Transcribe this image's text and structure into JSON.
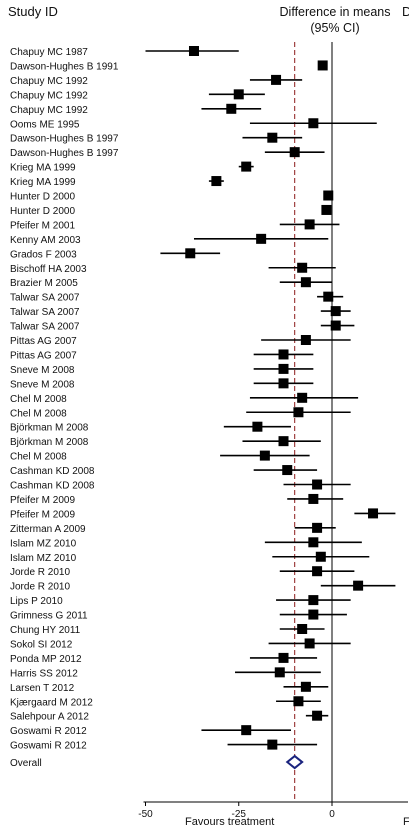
{
  "header": {
    "study_label": "Study ID",
    "effect_label_line1": "Difference in means",
    "effect_label_line2": "(95% CI)",
    "truncated_label": "D"
  },
  "footer": {
    "left_label": "Favours treatment",
    "right_label_truncated": "F"
  },
  "colors": {
    "marker": "#000000",
    "overall_diamond": "#1a237e",
    "reference_line": "#8b1a1a"
  },
  "chart_data": {
    "type": "forest",
    "xlabel": "",
    "ylabel": "",
    "xlim": [
      -55,
      4
    ],
    "xticks": [
      -50,
      -25,
      0
    ],
    "null_line": 0,
    "pooled_estimate_line": -10,
    "studies": [
      {
        "label": "Chapuy MC 1987",
        "mean": -37,
        "lo": -50,
        "hi": -25
      },
      {
        "label": "Dawson-Hughes B 1991",
        "mean": -2.5,
        "lo": -3.5,
        "hi": -1.5
      },
      {
        "label": "Chapuy MC 1992",
        "mean": -15,
        "lo": -22,
        "hi": -8
      },
      {
        "label": "Chapuy MC 1992",
        "mean": -25,
        "lo": -33,
        "hi": -18
      },
      {
        "label": "Chapuy MC 1992",
        "mean": -27,
        "lo": -35,
        "hi": -19
      },
      {
        "label": "Ooms ME 1995",
        "mean": -5,
        "lo": -22,
        "hi": 12
      },
      {
        "label": "Dawson-Hughes B 1997",
        "mean": -16,
        "lo": -24,
        "hi": -8
      },
      {
        "label": "Dawson-Hughes B 1997",
        "mean": -10,
        "lo": -18,
        "hi": -2
      },
      {
        "label": "Krieg MA 1999",
        "mean": -23,
        "lo": -25,
        "hi": -21
      },
      {
        "label": "Krieg MA 1999",
        "mean": -31,
        "lo": -33,
        "hi": -29
      },
      {
        "label": "Hunter D 2000",
        "mean": -1,
        "lo": -2,
        "hi": 0
      },
      {
        "label": "Hunter D 2000",
        "mean": -1.5,
        "lo": -2.5,
        "hi": -0.5
      },
      {
        "label": "Pfeifer M 2001",
        "mean": -6,
        "lo": -14,
        "hi": 2
      },
      {
        "label": "Kenny AM 2003",
        "mean": -19,
        "lo": -37,
        "hi": -1
      },
      {
        "label": "Grados F 2003",
        "mean": -38,
        "lo": -46,
        "hi": -30
      },
      {
        "label": "Bischoff HA 2003",
        "mean": -8,
        "lo": -17,
        "hi": 1
      },
      {
        "label": "Brazier M 2005",
        "mean": -7,
        "lo": -14,
        "hi": 0
      },
      {
        "label": "Talwar SA 2007",
        "mean": -1,
        "lo": -4,
        "hi": 3
      },
      {
        "label": "Talwar SA 2007",
        "mean": 1,
        "lo": -3,
        "hi": 5
      },
      {
        "label": "Talwar SA 2007",
        "mean": 1,
        "lo": -3,
        "hi": 6
      },
      {
        "label": "Pittas AG 2007",
        "mean": -7,
        "lo": -19,
        "hi": 5
      },
      {
        "label": "Pittas AG 2007",
        "mean": -13,
        "lo": -21,
        "hi": -5
      },
      {
        "label": "Sneve M 2008",
        "mean": -13,
        "lo": -21,
        "hi": -5
      },
      {
        "label": "Sneve M 2008",
        "mean": -13,
        "lo": -21,
        "hi": -5
      },
      {
        "label": "Chel M 2008",
        "mean": -8,
        "lo": -22,
        "hi": 7
      },
      {
        "label": "Chel M 2008",
        "mean": -9,
        "lo": -23,
        "hi": 5
      },
      {
        "label": "Björkman M 2008",
        "mean": -20,
        "lo": -29,
        "hi": -11
      },
      {
        "label": "Björkman M 2008",
        "mean": -13,
        "lo": -24,
        "hi": -3
      },
      {
        "label": "Chel M 2008",
        "mean": -18,
        "lo": -30,
        "hi": -6
      },
      {
        "label": "Cashman KD 2008",
        "mean": -12,
        "lo": -21,
        "hi": -4
      },
      {
        "label": "Cashman KD 2008",
        "mean": -4,
        "lo": -13,
        "hi": 5
      },
      {
        "label": "Pfeifer M 2009",
        "mean": -5,
        "lo": -12,
        "hi": 3
      },
      {
        "label": "Pfeifer M 2009",
        "mean": 11,
        "lo": 6,
        "hi": 17
      },
      {
        "label": "Zitterman A 2009",
        "mean": -4,
        "lo": -10,
        "hi": 1
      },
      {
        "label": "Islam MZ 2010",
        "mean": -5,
        "lo": -18,
        "hi": 8
      },
      {
        "label": "Islam MZ 2010",
        "mean": -3,
        "lo": -16,
        "hi": 10
      },
      {
        "label": "Jorde R 2010",
        "mean": -4,
        "lo": -14,
        "hi": 6
      },
      {
        "label": "Jorde R 2010",
        "mean": 7,
        "lo": -3,
        "hi": 17
      },
      {
        "label": "Lips P 2010",
        "mean": -5,
        "lo": -15,
        "hi": 5
      },
      {
        "label": "Grimness G 2011",
        "mean": -5,
        "lo": -14,
        "hi": 4
      },
      {
        "label": "Chung HY 2011",
        "mean": -8,
        "lo": -14,
        "hi": -2
      },
      {
        "label": "Sokol SI 2012",
        "mean": -6,
        "lo": -17,
        "hi": 5
      },
      {
        "label": "Ponda MP 2012",
        "mean": -13,
        "lo": -22,
        "hi": -4
      },
      {
        "label": "Harris SS 2012",
        "mean": -14,
        "lo": -26,
        "hi": -3
      },
      {
        "label": "Larsen T 2012",
        "mean": -7,
        "lo": -13,
        "hi": -1
      },
      {
        "label": "Kjærgaard M 2012",
        "mean": -9,
        "lo": -15,
        "hi": -3
      },
      {
        "label": "Salehpour A 2012",
        "mean": -4,
        "lo": -7,
        "hi": -1
      },
      {
        "label": "Goswami R 2012",
        "mean": -23,
        "lo": -35,
        "hi": -11
      },
      {
        "label": "Goswami R 2012",
        "mean": -16,
        "lo": -28,
        "hi": -4
      }
    ],
    "overall": {
      "label": "Overall",
      "mean": -10,
      "lo": -12,
      "hi": -8
    }
  }
}
